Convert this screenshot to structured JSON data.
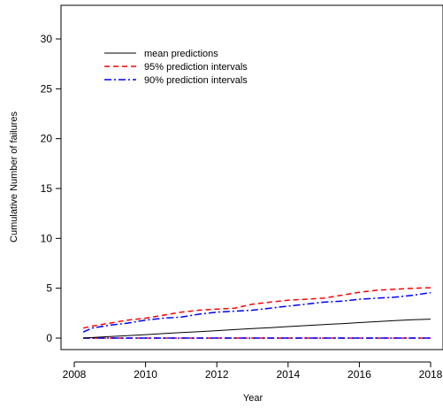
{
  "chart_data": {
    "type": "line",
    "xlabel": "Year",
    "ylabel": "Cumulative Number of failures",
    "xlim": [
      2008,
      2018
    ],
    "ylim": [
      -1,
      34
    ],
    "xticks": [
      2008,
      2010,
      2012,
      2014,
      2016,
      2018
    ],
    "yticks": [
      0,
      5,
      10,
      15,
      20,
      25,
      30
    ],
    "grid": false,
    "legend_position": "top-left",
    "x": [
      2008.25,
      2008.5,
      2009,
      2009.5,
      2010,
      2010.5,
      2011,
      2011.5,
      2012,
      2012.5,
      2013,
      2013.5,
      2014,
      2014.5,
      2015,
      2015.5,
      2016,
      2016.5,
      2017,
      2017.5,
      2018
    ],
    "series": [
      {
        "name": "mean predictions",
        "color": "#000000",
        "dash": "solid",
        "values": [
          0.0,
          0.05,
          0.15,
          0.25,
          0.35,
          0.45,
          0.55,
          0.65,
          0.75,
          0.85,
          0.95,
          1.05,
          1.15,
          1.25,
          1.35,
          1.45,
          1.55,
          1.65,
          1.75,
          1.85,
          1.9
        ]
      },
      {
        "name": "95% prediction intervals",
        "color": "#ff0000",
        "dash": "dashed",
        "values": [
          1.0,
          1.2,
          1.5,
          1.8,
          2.0,
          2.3,
          2.6,
          2.8,
          2.9,
          3.0,
          3.4,
          3.6,
          3.8,
          3.9,
          4.0,
          4.3,
          4.6,
          4.8,
          4.9,
          5.0,
          5.05
        ]
      },
      {
        "name": "90% prediction intervals",
        "color": "#0000ff",
        "dash": "dotdash",
        "values": [
          0.6,
          1.0,
          1.3,
          1.5,
          1.8,
          2.0,
          2.1,
          2.4,
          2.6,
          2.7,
          2.8,
          3.0,
          3.2,
          3.4,
          3.6,
          3.7,
          3.9,
          4.0,
          4.1,
          4.3,
          4.55
        ]
      }
    ],
    "lower_bounds": [
      {
        "color": "#ff0000",
        "dash": "dashed",
        "values": [
          0,
          0,
          0,
          0,
          0,
          0,
          0,
          0,
          0,
          0,
          0,
          0,
          0,
          0,
          0,
          0,
          0,
          0,
          0,
          0,
          0
        ]
      },
      {
        "color": "#0000ff",
        "dash": "dotdash",
        "values": [
          0,
          0,
          0,
          0,
          0,
          0,
          0,
          0,
          0,
          0,
          0,
          0,
          0,
          0,
          0,
          0,
          0,
          0,
          0,
          0,
          0
        ]
      }
    ]
  }
}
